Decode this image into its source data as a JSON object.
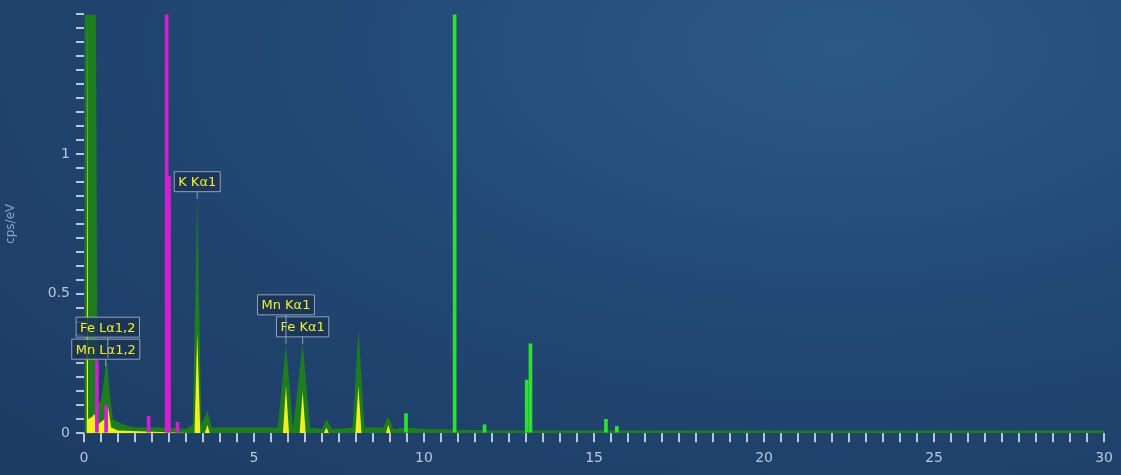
{
  "chart_data": {
    "type": "area",
    "ylabel": "cps/eV",
    "marker": "none",
    "line_style": "solid",
    "xlim": [
      0,
      30
    ],
    "ylim": [
      0,
      1.5
    ],
    "xticks": [
      0,
      {
        "value": 0.5,
        "label": null
      },
      {
        "value": 1,
        "label": null
      },
      {
        "value": 1.5,
        "label": null
      },
      {
        "value": 2,
        "label": null
      },
      {
        "value": 2.5,
        "label": null
      },
      {
        "value": 3,
        "label": null
      },
      {
        "value": 3.5,
        "label": null
      },
      {
        "value": 4,
        "label": null
      },
      {
        "value": 4.5,
        "label": null
      },
      5,
      {
        "value": 5.5,
        "label": null
      },
      {
        "value": 6,
        "label": null
      },
      {
        "value": 6.5,
        "label": null
      },
      {
        "value": 7,
        "label": null
      },
      {
        "value": 7.5,
        "label": null
      },
      {
        "value": 8,
        "label": null
      },
      {
        "value": 8.5,
        "label": null
      },
      {
        "value": 9,
        "label": null
      },
      {
        "value": 9.5,
        "label": null
      },
      10,
      {
        "value": 10.5,
        "label": null
      },
      {
        "value": 11,
        "label": null
      },
      {
        "value": 11.5,
        "label": null
      },
      {
        "value": 12,
        "label": null
      },
      {
        "value": 12.5,
        "label": null
      },
      {
        "value": 13,
        "label": null
      },
      {
        "value": 13.5,
        "label": null
      },
      {
        "value": 14,
        "label": null
      },
      {
        "value": 14.5,
        "label": null
      },
      15,
      {
        "value": 15.5,
        "label": null
      },
      {
        "value": 16,
        "label": null
      },
      {
        "value": 16.5,
        "label": null
      },
      {
        "value": 17,
        "label": null
      },
      {
        "value": 17.5,
        "label": null
      },
      {
        "value": 18,
        "label": null
      },
      {
        "value": 18.5,
        "label": null
      },
      {
        "value": 19,
        "label": null
      },
      {
        "value": 19.5,
        "label": null
      },
      20,
      {
        "value": 20.5,
        "label": null
      },
      {
        "value": 21,
        "label": null
      },
      {
        "value": 21.5,
        "label": null
      },
      {
        "value": 22,
        "label": null
      },
      {
        "value": 22.5,
        "label": null
      },
      {
        "value": 23,
        "label": null
      },
      {
        "value": 23.5,
        "label": null
      },
      {
        "value": 24,
        "label": null
      },
      {
        "value": 24.5,
        "label": null
      },
      25,
      {
        "value": 25.5,
        "label": null
      },
      {
        "value": 26,
        "label": null
      },
      {
        "value": 26.5,
        "label": null
      },
      {
        "value": 27,
        "label": null
      },
      {
        "value": 27.5,
        "label": null
      },
      {
        "value": 28,
        "label": null
      },
      {
        "value": 28.5,
        "label": null
      },
      {
        "value": 29,
        "label": null
      },
      {
        "value": 29.5,
        "label": null
      },
      30
    ],
    "yticks": [
      0,
      {
        "value": 0.05,
        "label": null
      },
      {
        "value": 0.1,
        "label": null
      },
      {
        "value": 0.15,
        "label": null
      },
      {
        "value": 0.2,
        "label": null
      },
      {
        "value": 0.25,
        "label": null
      },
      {
        "value": 0.3,
        "label": null
      },
      {
        "value": 0.35,
        "label": null
      },
      {
        "value": 0.4,
        "label": null
      },
      {
        "value": 0.45,
        "label": null
      },
      0.5,
      {
        "value": 0.55,
        "label": null
      },
      {
        "value": 0.6,
        "label": null
      },
      {
        "value": 0.65,
        "label": null
      },
      {
        "value": 0.7,
        "label": null
      },
      {
        "value": 0.75,
        "label": null
      },
      {
        "value": 0.8,
        "label": null
      },
      {
        "value": 0.85,
        "label": null
      },
      {
        "value": 0.9,
        "label": null
      },
      {
        "value": 0.95,
        "label": null
      },
      1,
      {
        "value": 1.05,
        "label": null
      },
      {
        "value": 1.1,
        "label": null
      },
      {
        "value": 1.15,
        "label": null
      },
      {
        "value": 1.2,
        "label": null
      },
      {
        "value": 1.25,
        "label": null
      },
      {
        "value": 1.3,
        "label": null
      },
      {
        "value": 1.35,
        "label": null
      },
      {
        "value": 1.4,
        "label": null
      },
      {
        "value": 1.45,
        "label": null
      },
      {
        "value": 1.5,
        "label": null
      }
    ],
    "series": [
      {
        "color": "#1e7d1e",
        "x": [
          0,
          0.02,
          0.35,
          0.4,
          0.5,
          0.6,
          0.67,
          0.75,
          0.85,
          1.0,
          1.2,
          1.5,
          2.0,
          2.5,
          3.0,
          3.2,
          3.33,
          3.45,
          3.63,
          3.75,
          4.5,
          5.0,
          5.7,
          5.94,
          6.15,
          6.43,
          6.65,
          7.0,
          7.13,
          7.3,
          7.9,
          8.07,
          8.25,
          8.8,
          8.95,
          9.1,
          9.5,
          10,
          12,
          15,
          20,
          25,
          30
        ],
        "values": [
          0,
          1.5,
          1.5,
          0.1,
          0.12,
          0.2,
          0.27,
          0.15,
          0.05,
          0.04,
          0.03,
          0.02,
          0.02,
          0.02,
          0.015,
          0.03,
          0.84,
          0.03,
          0.08,
          0.02,
          0.02,
          0.02,
          0.02,
          0.32,
          0.02,
          0.32,
          0.02,
          0.015,
          0.05,
          0.015,
          0.02,
          0.37,
          0.02,
          0.02,
          0.06,
          0.015,
          0.02,
          0.015,
          0.01,
          0.01,
          0.01,
          0.01,
          0.01
        ]
      },
      {
        "color": "#f0f020",
        "x": [
          0,
          0.08,
          0.1,
          0.12,
          0.25,
          0.3,
          0.4,
          0.6,
          0.7,
          0.8,
          1.0,
          3.25,
          3.33,
          3.42,
          3.55,
          3.63,
          3.7,
          5.85,
          5.94,
          6.03,
          6.34,
          6.43,
          6.52,
          7.05,
          7.13,
          7.2,
          7.98,
          8.07,
          8.16,
          8.88,
          8.95,
          9.02
        ],
        "values": [
          0,
          0,
          1.5,
          0.05,
          0.06,
          0.07,
          0.03,
          0.05,
          0.1,
          0.02,
          0.01,
          0,
          0.36,
          0,
          0,
          0.03,
          0,
          0,
          0.17,
          0,
          0,
          0.15,
          0,
          0,
          0.02,
          0,
          0,
          0.17,
          0,
          0,
          0.03,
          0
        ]
      },
      {
        "type": "bar",
        "color": "#d020d0",
        "x": [
          0.38,
          0.65,
          1.9,
          2.43,
          2.5,
          2.75
        ],
        "values": [
          0.26,
          0.1,
          0.06,
          1.5,
          0.92,
          0.04
        ]
      },
      {
        "type": "bar",
        "color": "#30e030",
        "x": [
          9.47,
          10.9,
          11.78,
          13.02,
          13.13,
          15.35,
          15.67
        ],
        "values": [
          0.07,
          1.5,
          0.03,
          0.19,
          0.32,
          0.05,
          0.025
        ]
      }
    ],
    "annotations": [
      {
        "text": "Mn Lα1,2",
        "x": 0.64,
        "y": 0.24
      },
      {
        "text": "Fe Lα1,2",
        "x": 0.7,
        "y": 0.27
      },
      {
        "text": "K Kα1",
        "x": 3.33,
        "y": 0.84
      },
      {
        "text": "Fe Kα1",
        "x": 6.43,
        "y": 0.32
      },
      {
        "text": "Mn Kα1",
        "x": 5.94,
        "y": 0.32
      }
    ]
  }
}
